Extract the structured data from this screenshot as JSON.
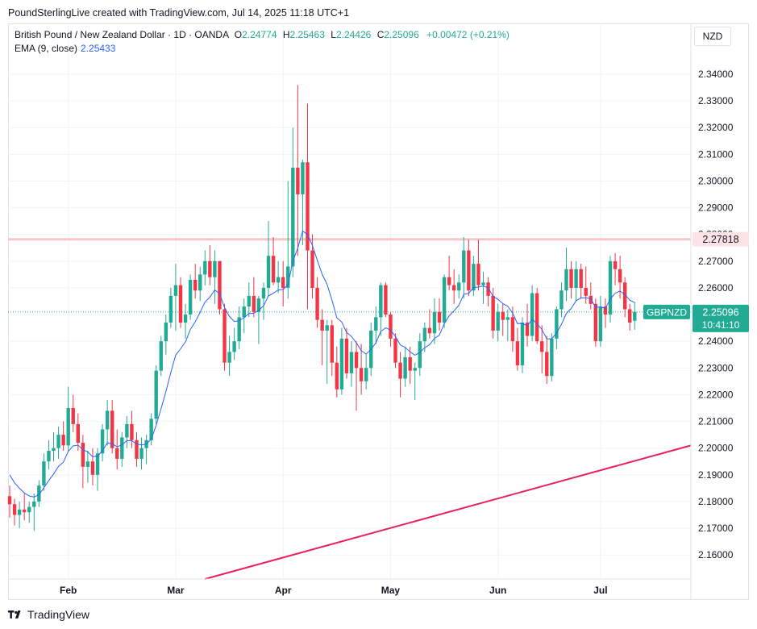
{
  "header": {
    "credit": "PoundSterlingLive created with TradingView.com, Jul 14, 2025 11:18 UTC+1"
  },
  "legend": {
    "symbol": "British Pound / New Zealand Dollar · 1D · OANDA",
    "open_label": "O",
    "open": "2.24774",
    "high_label": "H",
    "high": "2.25463",
    "low_label": "L",
    "low": "2.24426",
    "close_label": "C",
    "close": "2.25096",
    "change": "+0.00472 (+0.21%)",
    "ema_label": "EMA (9, close)",
    "ema_value": "2.25433"
  },
  "currency_button": "NZD",
  "price_tags": {
    "resistance": "2.27818",
    "symbol_tag": "GBPNZD",
    "last_price": "2.25096",
    "countdown": "10:41:10"
  },
  "footer": {
    "brand": "TradingView"
  },
  "colors": {
    "up": "#22ab94",
    "down": "#f23645",
    "ema": "#2962ff",
    "resistance_line": "#f7c5c8",
    "trend_line": "#e91e63"
  },
  "chart_data": {
    "type": "candlestick",
    "symbol": "GBPNZD",
    "timeframe": "1D",
    "y_axis": {
      "ticks": [
        "2.34000",
        "2.33000",
        "2.32000",
        "2.31000",
        "2.30000",
        "2.29000",
        "2.28000",
        "2.27000",
        "2.26000",
        "2.25000",
        "2.24000",
        "2.23000",
        "2.22000",
        "2.21000",
        "2.20000",
        "2.19000",
        "2.18000",
        "2.17000",
        "2.16000"
      ],
      "range": [
        2.151,
        2.359
      ]
    },
    "x_axis": {
      "labels": [
        "Feb",
        "Mar",
        "Apr",
        "May",
        "Jun",
        "Jul"
      ],
      "label_bar_index": [
        12,
        34,
        56,
        78,
        100,
        121
      ]
    },
    "horizontal_line": 2.27818,
    "last_close_line": 2.25096,
    "trend_line": {
      "from": {
        "bar": 40,
        "price": 2.151
      },
      "to": {
        "bar": 146,
        "price": 2.201
      }
    },
    "candles": [
      [
        2.182,
        2.186,
        2.174,
        2.179
      ],
      [
        2.179,
        2.181,
        2.171,
        2.175
      ],
      [
        2.175,
        2.18,
        2.17,
        2.177
      ],
      [
        2.177,
        2.183,
        2.173,
        2.176
      ],
      [
        2.176,
        2.18,
        2.172,
        2.178
      ],
      [
        2.178,
        2.183,
        2.169,
        2.18
      ],
      [
        2.18,
        2.188,
        2.178,
        2.186
      ],
      [
        2.186,
        2.198,
        2.184,
        2.195
      ],
      [
        2.195,
        2.203,
        2.192,
        2.199
      ],
      [
        2.199,
        2.206,
        2.195,
        2.2
      ],
      [
        2.2,
        2.208,
        2.196,
        2.205
      ],
      [
        2.205,
        2.21,
        2.199,
        2.201
      ],
      [
        2.201,
        2.223,
        2.199,
        2.215
      ],
      [
        2.215,
        2.22,
        2.206,
        2.209
      ],
      [
        2.209,
        2.213,
        2.199,
        2.202
      ],
      [
        2.202,
        2.205,
        2.185,
        2.193
      ],
      [
        2.193,
        2.199,
        2.187,
        2.195
      ],
      [
        2.195,
        2.2,
        2.186,
        2.19
      ],
      [
        2.19,
        2.2,
        2.184,
        2.198
      ],
      [
        2.198,
        2.209,
        2.195,
        2.207
      ],
      [
        2.207,
        2.218,
        2.201,
        2.214
      ],
      [
        2.214,
        2.218,
        2.198,
        2.2
      ],
      [
        2.2,
        2.207,
        2.192,
        2.196
      ],
      [
        2.196,
        2.206,
        2.193,
        2.204
      ],
      [
        2.204,
        2.212,
        2.2,
        2.209
      ],
      [
        2.209,
        2.214,
        2.2,
        2.203
      ],
      [
        2.203,
        2.206,
        2.193,
        2.196
      ],
      [
        2.196,
        2.204,
        2.192,
        2.2
      ],
      [
        2.2,
        2.205,
        2.194,
        2.203
      ],
      [
        2.203,
        2.213,
        2.201,
        2.211
      ],
      [
        2.211,
        2.231,
        2.209,
        2.229
      ],
      [
        2.229,
        2.242,
        2.227,
        2.24
      ],
      [
        2.24,
        2.25,
        2.235,
        2.247
      ],
      [
        2.247,
        2.26,
        2.245,
        2.257
      ],
      [
        2.257,
        2.269,
        2.244,
        2.261
      ],
      [
        2.261,
        2.264,
        2.245,
        2.247
      ],
      [
        2.247,
        2.254,
        2.241,
        2.25
      ],
      [
        2.25,
        2.265,
        2.248,
        2.263
      ],
      [
        2.263,
        2.269,
        2.256,
        2.259
      ],
      [
        2.259,
        2.268,
        2.255,
        2.265
      ],
      [
        2.265,
        2.274,
        2.261,
        2.27
      ],
      [
        2.27,
        2.276,
        2.261,
        2.264
      ],
      [
        2.264,
        2.274,
        2.254,
        2.27
      ],
      [
        2.27,
        2.27,
        2.25,
        2.252
      ],
      [
        2.252,
        2.254,
        2.229,
        2.232
      ],
      [
        2.232,
        2.242,
        2.227,
        2.236
      ],
      [
        2.236,
        2.245,
        2.233,
        2.24
      ],
      [
        2.24,
        2.253,
        2.237,
        2.249
      ],
      [
        2.249,
        2.256,
        2.243,
        2.253
      ],
      [
        2.253,
        2.262,
        2.249,
        2.257
      ],
      [
        2.257,
        2.264,
        2.249,
        2.251
      ],
      [
        2.251,
        2.257,
        2.239,
        2.256
      ],
      [
        2.256,
        2.262,
        2.248,
        2.26
      ],
      [
        2.26,
        2.285,
        2.257,
        2.272
      ],
      [
        2.272,
        2.279,
        2.261,
        2.262
      ],
      [
        2.262,
        2.27,
        2.258,
        2.264
      ],
      [
        2.264,
        2.27,
        2.253,
        2.26
      ],
      [
        2.26,
        2.3,
        2.256,
        2.268
      ],
      [
        2.268,
        2.32,
        2.264,
        2.305
      ],
      [
        2.305,
        2.336,
        2.272,
        2.295
      ],
      [
        2.295,
        2.308,
        2.276,
        2.307
      ],
      [
        2.307,
        2.329,
        2.252,
        2.274
      ],
      [
        2.274,
        2.28,
        2.256,
        2.26
      ],
      [
        2.26,
        2.264,
        2.245,
        2.248
      ],
      [
        2.248,
        2.252,
        2.231,
        2.244
      ],
      [
        2.244,
        2.248,
        2.224,
        2.246
      ],
      [
        2.246,
        2.248,
        2.227,
        2.232
      ],
      [
        2.232,
        2.238,
        2.219,
        2.222
      ],
      [
        2.222,
        2.245,
        2.22,
        2.241
      ],
      [
        2.241,
        2.245,
        2.226,
        2.228
      ],
      [
        2.228,
        2.24,
        2.223,
        2.236
      ],
      [
        2.236,
        2.24,
        2.214,
        2.23
      ],
      [
        2.23,
        2.239,
        2.22,
        2.225
      ],
      [
        2.225,
        2.235,
        2.222,
        2.23
      ],
      [
        2.23,
        2.247,
        2.227,
        2.244
      ],
      [
        2.244,
        2.253,
        2.239,
        2.249
      ],
      [
        2.249,
        2.262,
        2.242,
        2.261
      ],
      [
        2.261,
        2.262,
        2.249,
        2.25
      ],
      [
        2.25,
        2.251,
        2.238,
        2.241
      ],
      [
        2.241,
        2.243,
        2.23,
        2.232
      ],
      [
        2.232,
        2.236,
        2.219,
        2.226
      ],
      [
        2.226,
        2.238,
        2.223,
        2.234
      ],
      [
        2.234,
        2.238,
        2.224,
        2.229
      ],
      [
        2.229,
        2.232,
        2.218,
        2.23
      ],
      [
        2.23,
        2.243,
        2.227,
        2.24
      ],
      [
        2.24,
        2.247,
        2.236,
        2.245
      ],
      [
        2.245,
        2.252,
        2.241,
        2.243
      ],
      [
        2.243,
        2.256,
        2.239,
        2.251
      ],
      [
        2.251,
        2.256,
        2.244,
        2.247
      ],
      [
        2.247,
        2.265,
        2.245,
        2.264
      ],
      [
        2.264,
        2.272,
        2.259,
        2.261
      ],
      [
        2.261,
        2.267,
        2.254,
        2.259
      ],
      [
        2.259,
        2.265,
        2.256,
        2.262
      ],
      [
        2.262,
        2.279,
        2.256,
        2.274
      ],
      [
        2.274,
        2.278,
        2.257,
        2.259
      ],
      [
        2.259,
        2.272,
        2.257,
        2.269
      ],
      [
        2.269,
        2.278,
        2.259,
        2.261
      ],
      [
        2.261,
        2.266,
        2.254,
        2.262
      ],
      [
        2.262,
        2.264,
        2.253,
        2.257
      ],
      [
        2.257,
        2.26,
        2.241,
        2.244
      ],
      [
        2.244,
        2.254,
        2.24,
        2.251
      ],
      [
        2.251,
        2.254,
        2.242,
        2.248
      ],
      [
        2.248,
        2.252,
        2.24,
        2.249
      ],
      [
        2.249,
        2.253,
        2.236,
        2.24
      ],
      [
        2.24,
        2.245,
        2.229,
        2.231
      ],
      [
        2.231,
        2.249,
        2.228,
        2.247
      ],
      [
        2.247,
        2.254,
        2.238,
        2.242
      ],
      [
        2.242,
        2.261,
        2.24,
        2.258
      ],
      [
        2.258,
        2.26,
        2.239,
        2.24
      ],
      [
        2.24,
        2.246,
        2.228,
        2.236
      ],
      [
        2.236,
        2.242,
        2.224,
        2.227
      ],
      [
        2.227,
        2.243,
        2.225,
        2.241
      ],
      [
        2.241,
        2.253,
        2.237,
        2.252
      ],
      [
        2.252,
        2.262,
        2.249,
        2.259
      ],
      [
        2.259,
        2.275,
        2.255,
        2.267
      ],
      [
        2.267,
        2.27,
        2.256,
        2.26
      ],
      [
        2.26,
        2.27,
        2.255,
        2.267
      ],
      [
        2.267,
        2.269,
        2.256,
        2.26
      ],
      [
        2.26,
        2.268,
        2.254,
        2.257
      ],
      [
        2.257,
        2.262,
        2.252,
        2.254
      ],
      [
        2.254,
        2.256,
        2.238,
        2.24
      ],
      [
        2.24,
        2.257,
        2.238,
        2.253
      ],
      [
        2.253,
        2.256,
        2.245,
        2.25
      ],
      [
        2.25,
        2.272,
        2.247,
        2.27
      ],
      [
        2.27,
        2.273,
        2.261,
        2.267
      ],
      [
        2.267,
        2.272,
        2.256,
        2.262
      ],
      [
        2.262,
        2.264,
        2.249,
        2.252
      ],
      [
        2.252,
        2.254,
        2.244,
        2.247
      ],
      [
        2.2477,
        2.2546,
        2.2443,
        2.251
      ]
    ],
    "ema": [
      2.19,
      2.187,
      2.185,
      2.1832,
      2.1821,
      2.1817,
      2.1826,
      2.1851,
      2.1879,
      2.1903,
      2.1932,
      2.1947,
      2.1988,
      2.2008,
      2.2011,
      2.1994,
      2.1986,
      2.1968,
      2.197,
      2.199,
      2.202,
      2.2016,
      2.2005,
      2.2012,
      2.2028,
      2.2028,
      2.2015,
      2.2012,
      2.2015,
      2.2034,
      2.2085,
      2.2148,
      2.2212,
      2.2283,
      2.2348,
      2.2372,
      2.2398,
      2.2444,
      2.2473,
      2.2508,
      2.2547,
      2.2565,
      2.2592,
      2.2578,
      2.2526,
      2.2493,
      2.2474,
      2.2477,
      2.2488,
      2.2504,
      2.2505,
      2.2516,
      2.2533,
      2.257,
      2.258,
      2.2592,
      2.2594,
      2.2611,
      2.2699,
      2.2749,
      2.2813,
      2.2799,
      2.2759,
      2.2703,
      2.2651,
      2.2613,
      2.2554,
      2.2488,
      2.2472,
      2.2433,
      2.2418,
      2.2394,
      2.2365,
      2.2352,
      2.237,
      2.2394,
      2.2437,
      2.245,
      2.2442,
      2.2418,
      2.2386,
      2.2377,
      2.236,
      2.2348,
      2.2358,
      2.2376,
      2.2387,
      2.2411,
      2.2423,
      2.2466,
      2.2495,
      2.2514,
      2.2535,
      2.2576,
      2.2579,
      2.2601,
      2.2603,
      2.2607,
      2.26,
      2.2568,
      2.2557,
      2.2541,
      2.2531,
      2.2505,
      2.2466,
      2.2467,
      2.2458,
      2.2482,
      2.2466,
      2.2444,
      2.2409,
      2.2409,
      2.2431,
      2.2463,
      2.2504,
      2.2523,
      2.2552,
      2.2562,
      2.2563,
      2.2559,
      2.2527,
      2.2528,
      2.2523,
      2.2558,
      2.258,
      2.2588,
      2.2575,
      2.2554,
      2.2545
    ]
  }
}
